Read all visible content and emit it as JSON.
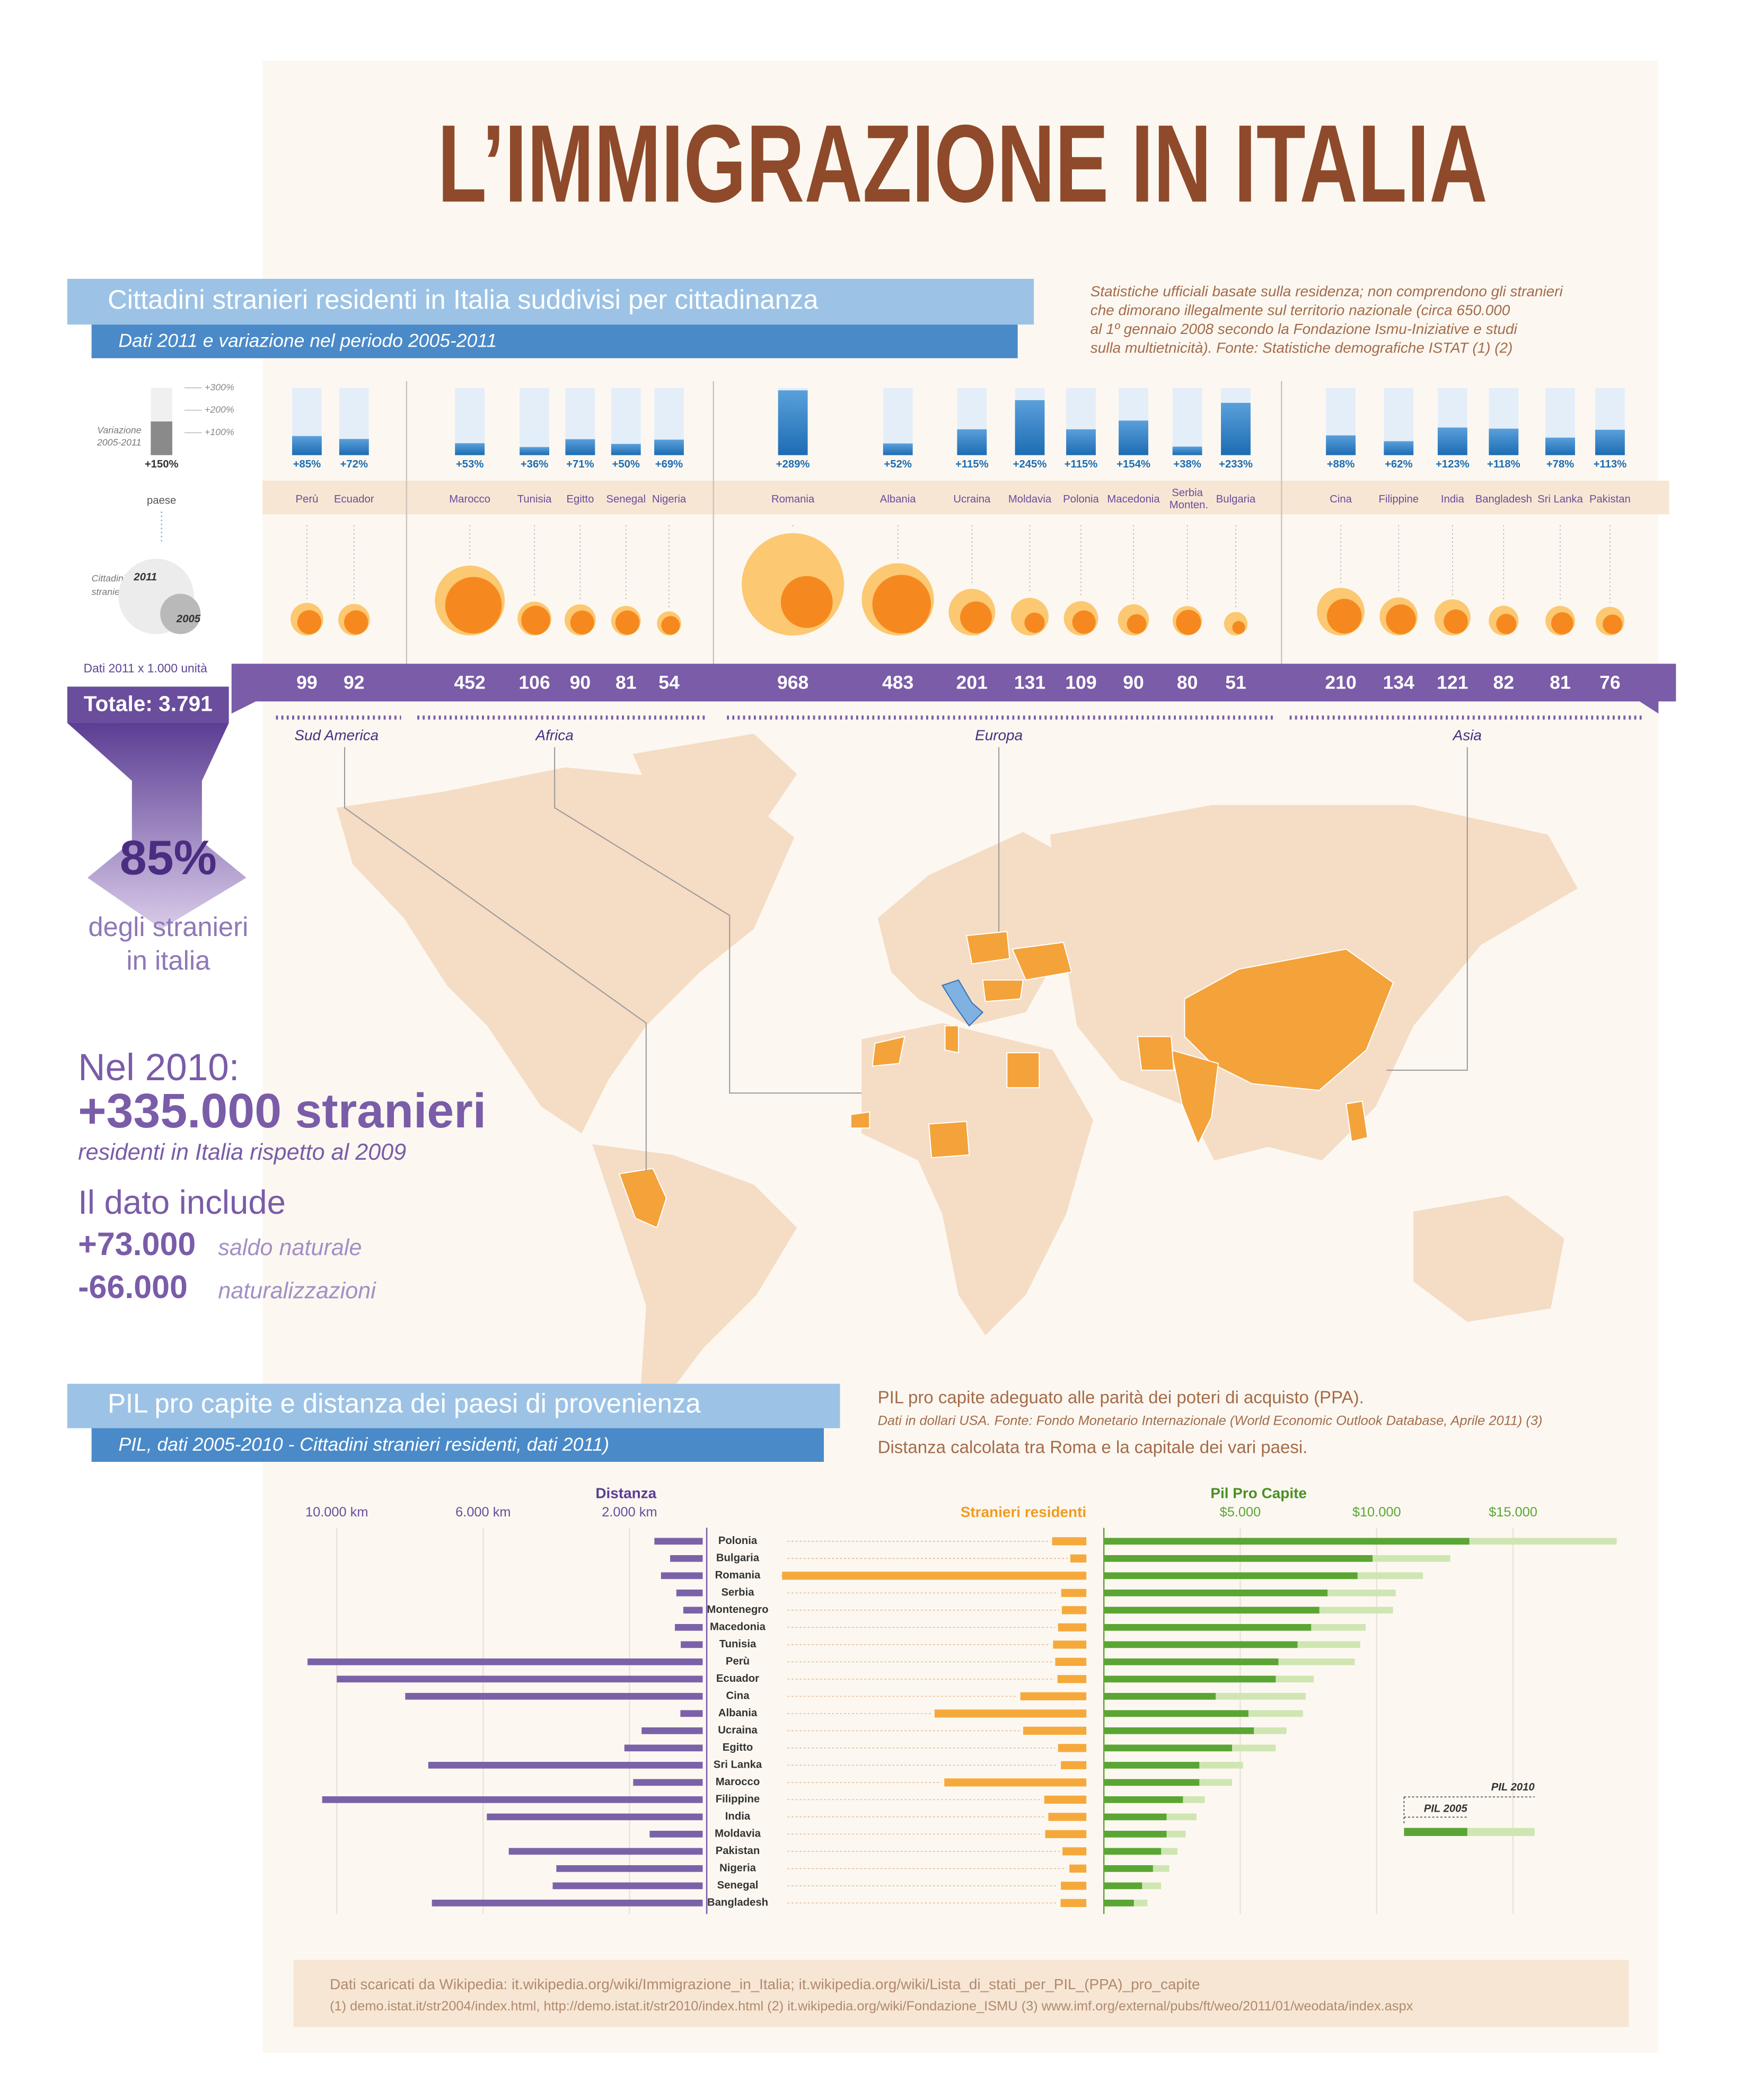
{
  "title": "L’IMMIGRAZIONE IN ITALIA",
  "section1": {
    "title": "Cittadini stranieri residenti in Italia suddivisi per cittadinanza",
    "subtitle": "Dati 2011 e variazione nel periodo 2005-2011",
    "note": [
      "Statistiche ufficiali basate sulla residenza; non comprendono gli stranieri",
      "che dimorano illegalmente sul territorio nazionale  (circa 650.000",
      "al 1º gennaio 2008 secondo la Fondazione Ismu-Iniziative e studi",
      "sulla multietnicità). Fonte: Statistiche demografiche ISTAT (1) (2)"
    ],
    "legend": {
      "variation": [
        "Variazione",
        "2005-2011"
      ],
      "example": {
        "value": 150,
        "label": "+150%"
      },
      "country": "paese",
      "residents": [
        "Cittadini",
        "stranieri"
      ],
      "year_2011": "2011",
      "year_2005": "2005"
    },
    "unit": "Dati 2011 x 1.000 unità",
    "total": "Totale: 3.791",
    "share": "85%",
    "share_text": [
      "degli stranieri",
      "in italia"
    ]
  },
  "chart_data": [
    {
      "type": "bar",
      "categories": [
        "Perù",
        "Ecuador",
        "Marocco",
        "Tunisia",
        "Egitto",
        "Senegal",
        "Nigeria",
        "Romania",
        "Albania",
        "Ucraina",
        "Moldavia",
        "Polonia",
        "Macedonia",
        "Serbia Monten.",
        "Bulgaria",
        "Cina",
        "Filippine",
        "India",
        "Bangladesh",
        "Sri Lanka",
        "Pakistan"
      ],
      "values": [
        85,
        72,
        53,
        36,
        71,
        50,
        69,
        289,
        52,
        115,
        245,
        115,
        154,
        38,
        233,
        88,
        62,
        123,
        118,
        78,
        113
      ],
      "value_labels": [
        "+85%",
        "+72%",
        "+53%",
        "+36%",
        "+71%",
        "+50%",
        "+69%",
        "+289%",
        "+52%",
        "+115%",
        "+245%",
        "+115%",
        "+154%",
        "+38%",
        "+233%",
        "+88%",
        "+62%",
        "+123%",
        "+118%",
        "+78%",
        "+113%"
      ],
      "color": "#1d6cb3",
      "ylim": [
        0,
        300
      ],
      "yticks": [
        {
          "value": 300,
          "label": "+300%"
        },
        {
          "value": 200,
          "label": "+200%"
        },
        {
          "value": 100,
          "label": "+100%"
        }
      ],
      "residents": [
        99,
        92,
        452,
        106,
        90,
        81,
        54,
        968,
        483,
        201,
        131,
        109,
        90,
        80,
        51,
        210,
        134,
        121,
        82,
        81,
        76
      ],
      "regions": [
        "Sud America",
        "Africa",
        "Europa",
        "Asia"
      ]
    },
    {
      "type": "bar",
      "orientation": "horizontal",
      "categories": [
        "Polonia",
        "Bulgaria",
        "Romania",
        "Serbia",
        "Montenegro",
        "Macedonia",
        "Tunisia",
        "Perù",
        "Ecuador",
        "Cina",
        "Albania",
        "Ucraina",
        "Egitto",
        "Sri Lanka",
        "Marocco",
        "Filippine",
        "India",
        "Moldavia",
        "Pakistan",
        "Nigeria",
        "Senegal",
        "Bangladesh"
      ],
      "distance": {
        "title": "Distanza",
        "color": "#7b62a8",
        "values": [
          1320,
          890,
          1140,
          720,
          530,
          760,
          600,
          10800,
          10000,
          8130,
          610,
          1670,
          2140,
          7500,
          1900,
          10400,
          5900,
          1450,
          5300,
          4000,
          4100,
          7400
        ],
        "xlim": [
          0,
          11000
        ],
        "xticks": [
          {
            "value": 10000,
            "label": "10.000 km"
          },
          {
            "value": 6000,
            "label": "6.000 km"
          },
          {
            "value": 2000,
            "label": "2.000 km"
          }
        ]
      },
      "residents": {
        "title": "Stranieri residenti",
        "color": "#f6a93b",
        "values": [
          109,
          51,
          968,
          80,
          78,
          90,
          106,
          99,
          92,
          210,
          483,
          201,
          90,
          81,
          452,
          134,
          121,
          131,
          76,
          54,
          81,
          82
        ]
      },
      "gdp": {
        "title": "Pil Pro Capite",
        "xlim": [
          0,
          19000
        ],
        "xticks": [
          {
            "value": 5000,
            "label": "$5.000"
          },
          {
            "value": 10000,
            "label": "$10.000"
          },
          {
            "value": 15000,
            "label": "$15.000"
          }
        ],
        "series": [
          {
            "name": "PIL 2010",
            "color": "#cfe6b3",
            "values": [
              18800,
              12700,
              11700,
              10700,
              10600,
              9600,
              9400,
              9200,
              7700,
              7400,
              7300,
              6700,
              6300,
              5100,
              4700,
              3700,
              3400,
              3000,
              2700,
              2400,
              2100,
              1600
            ]
          },
          {
            "name": "PIL 2005",
            "color": "#5ba534",
            "values": [
              13400,
              9850,
              9300,
              8200,
              7900,
              7600,
              7100,
              6400,
              6300,
              4100,
              5300,
              5500,
              4700,
              3500,
              3500,
              2900,
              2300,
              2300,
              2100,
              1800,
              1400,
              1100
            ]
          }
        ]
      }
    }
  ],
  "section3": {
    "line1": "Nel 2010:",
    "line2": "+335.000 stranieri",
    "line3": "residenti in Italia rispetto al 2009",
    "line4": "Il dato include",
    "items": [
      {
        "number": "+73.000",
        "text": "saldo naturale"
      },
      {
        "number": "-66.000",
        "text": "naturalizzazioni"
      }
    ]
  },
  "section2": {
    "title": "PIL pro capite e distanza dei paesi di provenienza",
    "subtitle": "PIL, dati 2005-2010 - Cittadini stranieri residenti, dati 2011)",
    "note1": "PIL pro capite adeguato alle parità dei poteri di acquisto (PPA).",
    "note2": "Dati in dollari USA. Fonte: Fondo Monetario Internazionale (World Economic Outlook Database, Aprile 2011) (3)",
    "note3": "Distanza calcolata tra Roma e la capitale dei vari paesi."
  },
  "footer": [
    "Dati scaricati da Wikipedia: it.wikipedia.org/wiki/Immigrazione_in_Italia; it.wikipedia.org/wiki/Lista_di_stati_per_PIL_(PPA)_pro_capite",
    "(1) demo.istat.it/str2004/index.html, http://demo.istat.it/str2010/index.html   (2) it.wikipedia.org/wiki/Fondazione_ISMU   (3) www.imf.org/external/pubs/ft/weo/2011/01/weodata/index.aspx"
  ]
}
